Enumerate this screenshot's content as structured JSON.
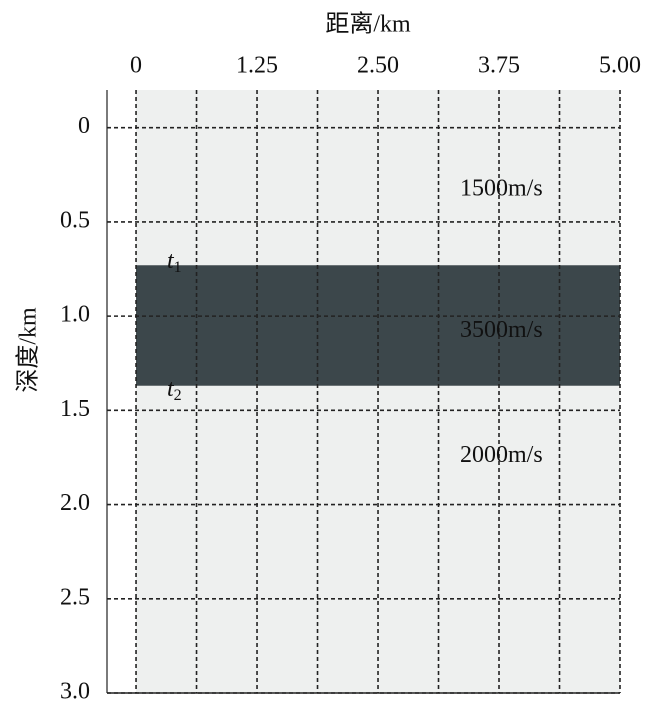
{
  "chart_data": {
    "type": "layers",
    "xlabel": "距离/km",
    "ylabel": "深度/km",
    "xlim": [
      -0.3,
      5
    ],
    "ylim": [
      -0.2,
      3
    ],
    "xticks": [
      0,
      1.25,
      {
        "value": 2.5,
        "label": "2.50"
      },
      3.75,
      {
        "value": 5,
        "label": "5.00"
      }
    ],
    "xminor": [
      0.625,
      1.875,
      3.125,
      4.375
    ],
    "yticks": [
      0,
      0.5,
      {
        "value": 1,
        "label": "1.0"
      },
      1.5,
      {
        "value": 2,
        "label": "2.0"
      },
      2.5,
      {
        "value": 3,
        "label": "3.0"
      }
    ],
    "grid": true,
    "layers": [
      {
        "label": "1500m/s",
        "color": "#eef0ef"
      },
      {
        "label": "3500m/s",
        "color": "#3c474b"
      },
      {
        "label": "2000m/s",
        "color": "#eef0ef"
      }
    ],
    "interfaces": [
      {
        "name": "t",
        "index": "1",
        "depth": 0.73
      },
      {
        "name": "t",
        "index": "2",
        "depth": 1.37
      }
    ]
  }
}
